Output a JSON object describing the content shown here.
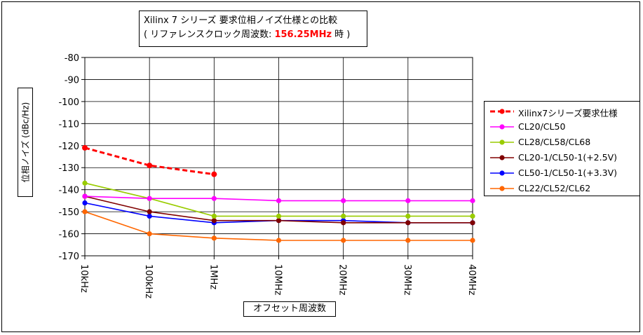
{
  "title": {
    "line1": "Xilinx 7 シリーズ 要求位相ノイズ仕様との比較",
    "line2_prefix": "( リファレンスクロック周波数: ",
    "line2_highlight": "156.25MHz",
    "line2_suffix": " 時 )"
  },
  "colors": {
    "highlight": "#ff0000"
  },
  "chart_data": {
    "type": "line",
    "title": "Xilinx 7 シリーズ 要求位相ノイズ仕様との比較 ( リファレンスクロック周波数: 156.25MHz 時 )",
    "xlabel": "オフセット周波数",
    "ylabel": "位相ノイズ (dBc/Hz)",
    "categories": [
      "10kHz",
      "100kHz",
      "1MHz",
      "10MHz",
      "20MHz",
      "30MHz",
      "40MHz"
    ],
    "yticks": [
      "-80",
      "-90",
      "-100",
      "-110",
      "-120",
      "-130",
      "-140",
      "-150",
      "-160",
      "-170"
    ],
    "ylim": [
      -170,
      -80
    ],
    "grid": true,
    "legend_position": "right",
    "series": [
      {
        "name": "Xilinx7シリーズ要求仕様",
        "color": "#ff0000",
        "dashed": true,
        "values": [
          -121,
          -129,
          -133,
          null,
          null,
          null,
          null
        ]
      },
      {
        "name": "CL20/CL50",
        "color": "#ff00ff",
        "dashed": false,
        "values": [
          -143,
          -144,
          -144,
          -145,
          -145,
          -145,
          -145
        ]
      },
      {
        "name": "CL28/CL58/CL68",
        "color": "#99cc00",
        "dashed": false,
        "values": [
          -137,
          -144,
          -152,
          -152,
          -152,
          -152,
          -152
        ]
      },
      {
        "name": "CL20-1/CL50-1(+2.5V)",
        "color": "#800000",
        "dashed": false,
        "values": [
          -143,
          -150,
          -154,
          -154,
          -155,
          -155,
          -155
        ]
      },
      {
        "name": "CL50-1/CL50-1(+3.3V)",
        "color": "#0000ff",
        "dashed": false,
        "values": [
          -146,
          -152,
          -155,
          -154,
          -154,
          -155,
          -155
        ]
      },
      {
        "name": "CL22/CL52/CL62",
        "color": "#ff6600",
        "dashed": false,
        "values": [
          -150,
          -160,
          -162,
          -163,
          -163,
          -163,
          -163
        ]
      }
    ]
  }
}
